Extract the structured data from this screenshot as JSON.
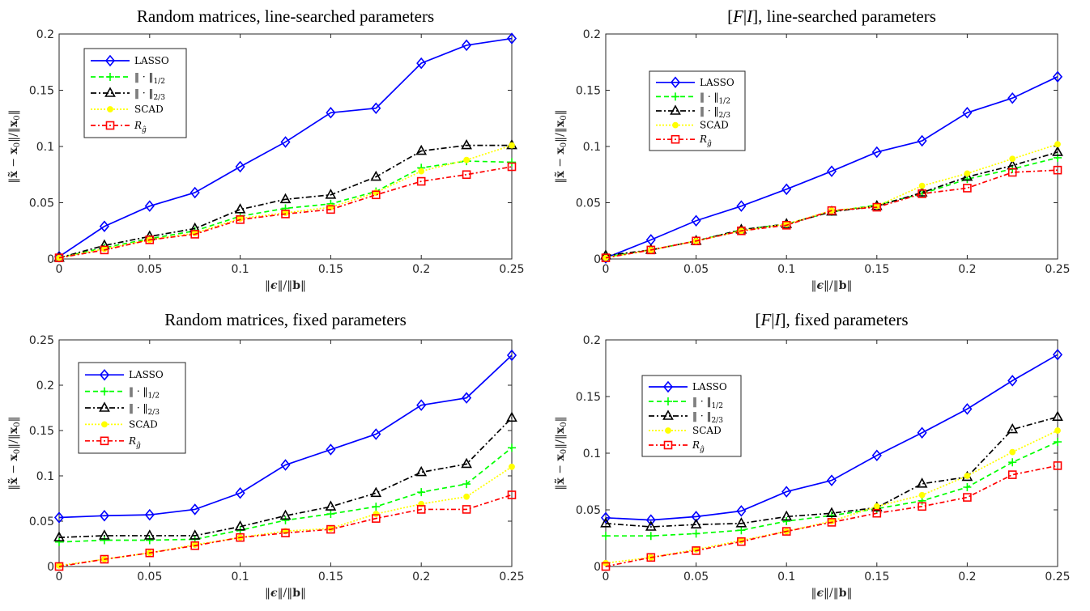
{
  "chart_data": [
    {
      "type": "line",
      "title": "Random matrices, line-searched parameters",
      "xlabel": "‖ϵ‖/‖b‖",
      "ylabel": "‖x̃ − x₀‖/‖x₀‖",
      "xlim": [
        0,
        0.25
      ],
      "ylim": [
        0,
        0.2
      ],
      "xticks": [
        "0",
        "0.05",
        "0.1",
        "0.15",
        "0.2",
        "0.25"
      ],
      "yticks": [
        "0",
        "0.05",
        "0.1",
        "0.15",
        "0.2"
      ],
      "grid": false,
      "legend_position": "top-left",
      "x": [
        0,
        0.025,
        0.05,
        0.075,
        0.1,
        0.125,
        0.15,
        0.175,
        0.2,
        0.225,
        0.25
      ],
      "series": [
        {
          "name": "LASSO",
          "color": "#0000ff",
          "marker": "diamond",
          "values": [
            0.002,
            0.029,
            0.047,
            0.059,
            0.082,
            0.104,
            0.13,
            0.134,
            0.174,
            0.19,
            0.196
          ]
        },
        {
          "name": "‖·‖1/2",
          "color": "#00ff00",
          "marker": "plus",
          "values": [
            0.001,
            0.01,
            0.018,
            0.025,
            0.038,
            0.045,
            0.049,
            0.06,
            0.081,
            0.087,
            0.086
          ]
        },
        {
          "name": "‖·‖2/3",
          "color": "#000000",
          "marker": "triangle",
          "values": [
            0.001,
            0.012,
            0.02,
            0.027,
            0.044,
            0.053,
            0.057,
            0.073,
            0.096,
            0.101,
            0.101
          ]
        },
        {
          "name": "SCAD",
          "color": "#ffff00",
          "marker": "dot",
          "values": [
            0.001,
            0.009,
            0.017,
            0.023,
            0.036,
            0.041,
            0.046,
            0.059,
            0.078,
            0.088,
            0.101
          ]
        },
        {
          "name": "R_ĝ",
          "color": "#ff0000",
          "marker": "square",
          "values": [
            0.001,
            0.008,
            0.017,
            0.022,
            0.035,
            0.04,
            0.044,
            0.057,
            0.069,
            0.075,
            0.082
          ]
        }
      ]
    },
    {
      "type": "line",
      "title": "[F|I], line-searched parameters",
      "xlabel": "‖ϵ‖/‖b‖",
      "ylabel": "‖x̃ − x₀‖/‖x₀‖",
      "xlim": [
        0,
        0.25
      ],
      "ylim": [
        0,
        0.2
      ],
      "xticks": [
        "0",
        "0.05",
        "0.1",
        "0.15",
        "0.2",
        "0.25"
      ],
      "yticks": [
        "0",
        "0.05",
        "0.1",
        "0.15",
        "0.2"
      ],
      "grid": false,
      "legend_position": "top-left",
      "x": [
        0,
        0.025,
        0.05,
        0.075,
        0.1,
        0.125,
        0.15,
        0.175,
        0.2,
        0.225,
        0.25
      ],
      "series": [
        {
          "name": "LASSO",
          "color": "#0000ff",
          "marker": "diamond",
          "values": [
            0.001,
            0.017,
            0.034,
            0.047,
            0.062,
            0.078,
            0.095,
            0.105,
            0.13,
            0.143,
            0.162
          ]
        },
        {
          "name": "‖·‖1/2",
          "color": "#00ff00",
          "marker": "plus",
          "values": [
            0.002,
            0.008,
            0.016,
            0.026,
            0.031,
            0.042,
            0.048,
            0.058,
            0.071,
            0.08,
            0.09
          ]
        },
        {
          "name": "‖·‖2/3",
          "color": "#000000",
          "marker": "triangle",
          "values": [
            0.003,
            0.008,
            0.016,
            0.026,
            0.031,
            0.042,
            0.047,
            0.059,
            0.073,
            0.083,
            0.095
          ]
        },
        {
          "name": "SCAD",
          "color": "#ffff00",
          "marker": "dot",
          "values": [
            0.001,
            0.008,
            0.016,
            0.025,
            0.031,
            0.043,
            0.047,
            0.065,
            0.076,
            0.089,
            0.102
          ]
        },
        {
          "name": "R_ĝ",
          "color": "#ff0000",
          "marker": "square",
          "values": [
            0.001,
            0.008,
            0.016,
            0.025,
            0.03,
            0.043,
            0.046,
            0.058,
            0.063,
            0.077,
            0.079
          ]
        }
      ]
    },
    {
      "type": "line",
      "title": "Random matrices, fixed parameters",
      "xlabel": "‖ϵ‖/‖b‖",
      "ylabel": "‖x̃ − x₀‖/‖x₀‖",
      "xlim": [
        0,
        0.25
      ],
      "ylim": [
        0,
        0.25
      ],
      "xticks": [
        "0",
        "0.05",
        "0.1",
        "0.15",
        "0.2",
        "0.25"
      ],
      "yticks": [
        "0",
        "0.05",
        "0.1",
        "0.15",
        "0.2",
        "0.25"
      ],
      "grid": false,
      "legend_position": "top-left",
      "x": [
        0,
        0.025,
        0.05,
        0.075,
        0.1,
        0.125,
        0.15,
        0.175,
        0.2,
        0.225,
        0.25
      ],
      "series": [
        {
          "name": "LASSO",
          "color": "#0000ff",
          "marker": "diamond",
          "values": [
            0.054,
            0.056,
            0.057,
            0.063,
            0.081,
            0.112,
            0.129,
            0.146,
            0.178,
            0.186,
            0.233
          ]
        },
        {
          "name": "‖·‖1/2",
          "color": "#00ff00",
          "marker": "plus",
          "values": [
            0.027,
            0.029,
            0.029,
            0.03,
            0.04,
            0.051,
            0.058,
            0.066,
            0.082,
            0.091,
            0.131
          ]
        },
        {
          "name": "‖·‖2/3",
          "color": "#000000",
          "marker": "triangle",
          "values": [
            0.032,
            0.034,
            0.034,
            0.034,
            0.044,
            0.056,
            0.066,
            0.081,
            0.104,
            0.113,
            0.164
          ]
        },
        {
          "name": "SCAD",
          "color": "#ffff00",
          "marker": "dot",
          "values": [
            0.001,
            0.008,
            0.015,
            0.024,
            0.032,
            0.039,
            0.042,
            0.058,
            0.069,
            0.077,
            0.11
          ]
        },
        {
          "name": "R_ĝ",
          "color": "#ff0000",
          "marker": "square",
          "values": [
            0.0,
            0.008,
            0.015,
            0.023,
            0.032,
            0.037,
            0.041,
            0.053,
            0.063,
            0.063,
            0.079
          ]
        }
      ]
    },
    {
      "type": "line",
      "title": "[F|I], fixed parameters",
      "xlabel": "‖ϵ‖/‖b‖",
      "ylabel": "‖x̃ − x₀‖/‖x₀‖",
      "xlim": [
        0,
        0.25
      ],
      "ylim": [
        0,
        0.2
      ],
      "xticks": [
        "0",
        "0.05",
        "0.1",
        "0.15",
        "0.2",
        "0.25"
      ],
      "yticks": [
        "0",
        "0.05",
        "0.1",
        "0.15",
        "0.2"
      ],
      "grid": false,
      "legend_position": "top-left",
      "x": [
        0,
        0.025,
        0.05,
        0.075,
        0.1,
        0.125,
        0.15,
        0.175,
        0.2,
        0.225,
        0.25
      ],
      "series": [
        {
          "name": "LASSO",
          "color": "#0000ff",
          "marker": "diamond",
          "values": [
            0.043,
            0.041,
            0.044,
            0.049,
            0.066,
            0.076,
            0.098,
            0.118,
            0.139,
            0.164,
            0.187
          ]
        },
        {
          "name": "‖·‖1/2",
          "color": "#00ff00",
          "marker": "plus",
          "values": [
            0.027,
            0.027,
            0.029,
            0.032,
            0.04,
            0.045,
            0.051,
            0.058,
            0.07,
            0.092,
            0.11
          ]
        },
        {
          "name": "‖·‖2/3",
          "color": "#000000",
          "marker": "triangle",
          "values": [
            0.038,
            0.035,
            0.037,
            0.038,
            0.044,
            0.047,
            0.052,
            0.073,
            0.079,
            0.121,
            0.132
          ]
        },
        {
          "name": "SCAD",
          "color": "#ffff00",
          "marker": "dot",
          "values": [
            0.003,
            0.008,
            0.015,
            0.023,
            0.031,
            0.04,
            0.053,
            0.063,
            0.08,
            0.101,
            0.12
          ]
        },
        {
          "name": "R_ĝ",
          "color": "#ff0000",
          "marker": "square",
          "values": [
            0.0,
            0.008,
            0.014,
            0.022,
            0.031,
            0.039,
            0.047,
            0.053,
            0.061,
            0.081,
            0.089
          ]
        }
      ]
    }
  ]
}
